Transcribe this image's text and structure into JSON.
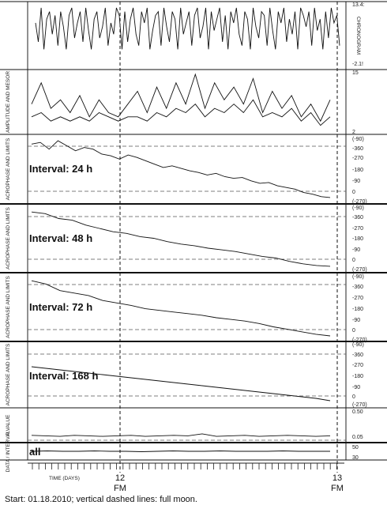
{
  "caption": "Start: 01.18.2010; vertical dashed lines: full moon.",
  "chart_data": {
    "type": "line",
    "x_axis": {
      "label": "TIME (DAYS)",
      "ticks": [
        {
          "label": "12",
          "sub": "FM",
          "x": 12
        },
        {
          "label": "13",
          "sub": "FM",
          "x": 13
        }
      ],
      "full_moon_x": [
        12,
        13
      ]
    },
    "panels": [
      {
        "id": "chronogram",
        "ylabel": "CHRONOGRAM",
        "tick_labels": [
          "13.4:",
          "-2.1!"
        ],
        "series": [
          {
            "values": [
              9,
              4,
              13,
              2,
              10,
              12,
              6,
              11,
              3,
              12,
              8,
              2,
              11,
              13,
              5,
              9,
              12,
              4,
              13,
              7,
              2,
              10,
              12,
              5,
              8,
              13,
              3,
              9,
              6,
              13,
              11,
              2,
              12,
              4,
              10,
              13,
              6,
              3,
              12,
              9,
              13,
              2,
              7,
              11,
              12,
              3,
              13,
              8,
              4,
              12,
              10,
              2,
              13,
              6,
              9,
              12,
              3,
              11,
              13,
              5,
              8,
              13,
              2,
              12,
              7,
              10,
              13,
              4,
              11,
              2,
              12,
              9,
              13,
              6,
              3,
              12,
              10,
              2,
              13,
              8,
              5,
              12,
              11,
              3,
              13,
              7,
              2,
              12,
              9,
              13,
              4,
              10,
              6,
              12,
              2,
              13,
              11,
              8,
              12,
              3,
              13,
              7,
              10,
              2,
              12,
              5,
              13,
              9,
              11,
              3
            ]
          }
        ]
      },
      {
        "id": "amplitude-mesor",
        "ylabel": "AMPLITUDE AND MESOR",
        "tick_labels": [
          "15",
          "2"
        ],
        "series": [
          {
            "values": [
              8,
              13,
              7,
              9,
              6,
              10,
              5,
              9,
              6,
              5,
              8,
              11,
              6,
              12,
              7,
              13,
              8,
              15,
              7,
              13,
              9,
              12,
              8,
              14,
              6,
              11,
              7,
              10,
              5,
              8,
              4,
              9
            ]
          },
          {
            "values": [
              5,
              6,
              4,
              5,
              4,
              5,
              4,
              6,
              5,
              4,
              5,
              5,
              4,
              6,
              5,
              7,
              6,
              8,
              5,
              7,
              6,
              8,
              6,
              9,
              5,
              6,
              5,
              7,
              4,
              6,
              3,
              5
            ]
          }
        ]
      },
      {
        "id": "acrophase-24",
        "interval_label": "Interval: 24 h",
        "ylabel": "ACROPHASE AND LIMITS",
        "tick_labels": [
          "(-90)",
          "-360",
          "-270",
          "-180",
          "-90",
          "0",
          "(-270)"
        ],
        "series": [
          {
            "values": [
              -30,
              -20,
              -60,
              -10,
              -40,
              -70,
              -50,
              -60,
              -90,
              -100,
              -120,
              -95,
              -110,
              -130,
              -150,
              -170,
              -160,
              -175,
              -190,
              -200,
              -215,
              -205,
              -225,
              -235,
              -230,
              -250,
              -265,
              -260,
              -280,
              -290,
              -300,
              -320,
              -330,
              -345,
              -350
            ]
          }
        ]
      },
      {
        "id": "acrophase-48",
        "interval_label": "Interval: 48 h",
        "ylabel": "ACROPHASE AND LIMITS",
        "tick_labels": [
          "(-90)",
          "-360",
          "-270",
          "-180",
          "-90",
          "0",
          "(-270)"
        ],
        "series": [
          {
            "values": [
              -20,
              -30,
              -60,
              -70,
              -100,
              -120,
              -140,
              -150,
              -170,
              -180,
              -200,
              -215,
              -225,
              -240,
              -250,
              -260,
              -275,
              -290,
              -300,
              -320,
              -335,
              -345,
              -350
            ]
          }
        ]
      },
      {
        "id": "acrophase-72",
        "interval_label": "Interval: 72 h",
        "ylabel": "ACROPHASE AND LIMITS",
        "tick_labels": [
          "(-90)",
          "-360",
          "-270",
          "-180",
          "-90",
          "0",
          "(-270)"
        ],
        "series": [
          {
            "values": [
              -20,
              -40,
              -80,
              -95,
              -110,
              -140,
              -155,
              -170,
              -190,
              -200,
              -210,
              -220,
              -230,
              -245,
              -255,
              -265,
              -280,
              -300,
              -315,
              -330,
              -345,
              -355
            ]
          }
        ]
      },
      {
        "id": "acrophase-168",
        "interval_label": "Interval: 168 h",
        "ylabel": "ACROPHASE AND LIMITS",
        "tick_labels": [
          "(-90)",
          "-360",
          "-270",
          "-180",
          "-90",
          "0",
          "(-270)"
        ],
        "series": [
          {
            "values": [
              -130,
              -140,
              -150,
              -160,
              -170,
              -180,
              -190,
              -200,
              -210,
              -220,
              -230,
              -240,
              -250,
              -260,
              -270,
              -280,
              -290,
              -300,
              -310,
              -320,
              -330,
              -345
            ]
          }
        ]
      },
      {
        "id": "p-value",
        "ylabel": "P VALUE",
        "tick_labels": [
          "0.50",
          "0.05"
        ],
        "series": [
          {
            "values": [
              0.05,
              0.04,
              0.03,
              0.05,
              0.04,
              0.03,
              0.04,
              0.05,
              0.03,
              0.04,
              0.05,
              0.04,
              0.08,
              0.03,
              0.04,
              0.05,
              0.03,
              0.04,
              0.05,
              0.04,
              0.03,
              0.04
            ]
          }
        ]
      },
      {
        "id": "data-interval",
        "interval_label": "all",
        "ylabel": "DATA / INTERVAL",
        "tick_labels": [
          "50",
          "30"
        ],
        "series": [
          {
            "values": [
              40,
              41,
              40,
              40,
              41,
              40,
              40,
              39,
              40,
              41,
              40,
              40,
              41,
              40,
              40,
              40,
              41,
              40,
              40,
              40
            ]
          }
        ]
      }
    ]
  }
}
